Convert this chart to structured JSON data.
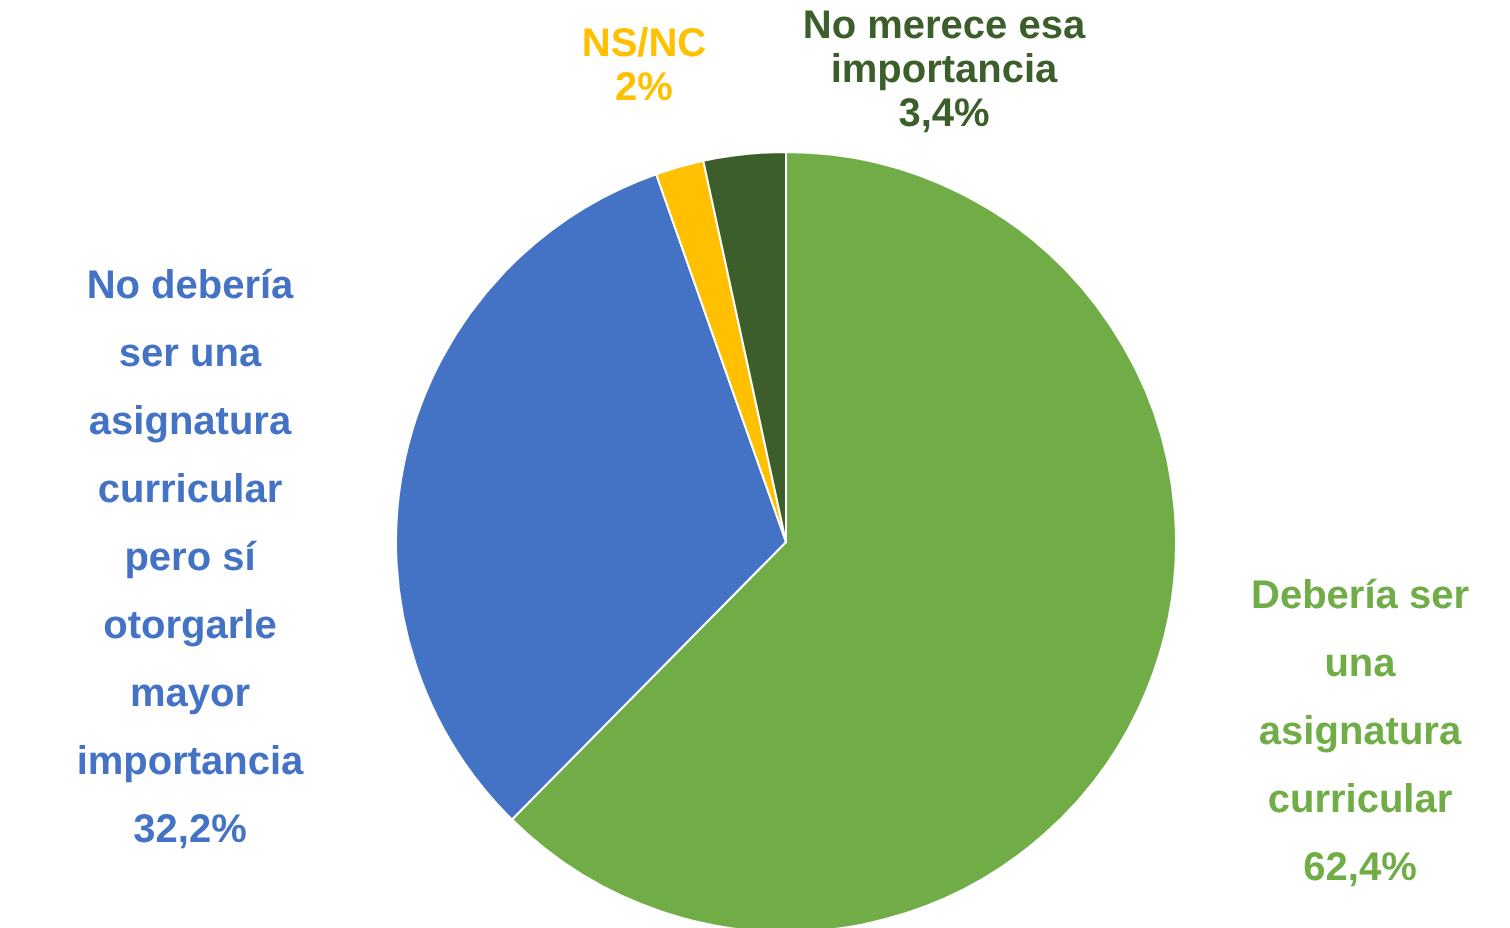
{
  "chart_data": {
    "type": "pie",
    "categories": [
      "Debería ser una asignatura curricular",
      "No debería ser una asignatura curricular pero sí otorgarle mayor importancia",
      "NS/NC",
      "No merece esa importancia"
    ],
    "values": [
      62.4,
      32.2,
      2,
      3.4
    ],
    "colors": [
      "#70ad47",
      "#4472c4",
      "#ffc000",
      "#3b5e2b"
    ],
    "value_labels": [
      "62,4%",
      "32,2%",
      "2%",
      "3,4%"
    ]
  }
}
